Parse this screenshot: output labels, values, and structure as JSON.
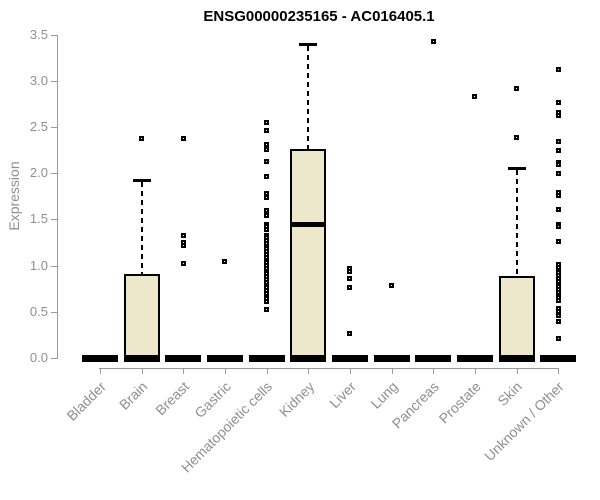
{
  "colors": {
    "box_fill": "#EDE7CB",
    "box_stroke": "#000000",
    "axis_text": "#8f8f8f",
    "axis_line": "#9a9a9a",
    "title_text": "#000000",
    "background": "#ffffff"
  },
  "chart_data": {
    "type": "boxplot",
    "title": "ENSG00000235165 - AC016405.1",
    "xlabel": "",
    "ylabel": "Expression",
    "ylim": [
      0,
      3.5
    ],
    "yticks": [
      "0.0",
      "0.5",
      "1.0",
      "1.5",
      "2.0",
      "2.5",
      "3.0",
      "3.5"
    ],
    "grid": false,
    "categories": [
      "Bladder",
      "Brain",
      "Breast",
      "Gastric",
      "Hematopoietic cells",
      "Kidney",
      "Liver",
      "Lung",
      "Pancreas",
      "Prostate",
      "Skin",
      "Unknown / Other"
    ],
    "series": [
      {
        "name": "Bladder",
        "whisker_low": 0,
        "q1": 0,
        "median": 0,
        "q3": 0,
        "whisker_high": 0,
        "outliers": []
      },
      {
        "name": "Brain",
        "whisker_low": 0,
        "q1": 0,
        "median": 0,
        "q3": 0.91,
        "whisker_high": 1.93,
        "outliers": [
          2.38
        ]
      },
      {
        "name": "Breast",
        "whisker_low": 0,
        "q1": 0,
        "median": 0,
        "q3": 0,
        "whisker_high": 0,
        "outliers": [
          2.38,
          1.33,
          1.25,
          1.22,
          1.02
        ]
      },
      {
        "name": "Gastric",
        "whisker_low": 0,
        "q1": 0,
        "median": 0,
        "q3": 0,
        "whisker_high": 0,
        "outliers": [
          1.04
        ]
      },
      {
        "name": "Hematopoietic cells",
        "whisker_low": 0,
        "q1": 0,
        "median": 0,
        "q3": 0,
        "whisker_high": 0,
        "outliers": [
          2.55,
          2.46,
          2.31,
          2.26,
          2.13,
          1.96,
          1.78,
          1.74,
          1.6,
          1.54,
          1.45,
          1.42,
          1.39,
          1.33,
          1.3,
          1.27,
          1.24,
          1.21,
          1.18,
          1.15,
          1.12,
          1.09,
          1.06,
          1.03,
          1.0,
          0.97,
          0.94,
          0.91,
          0.88,
          0.85,
          0.82,
          0.79,
          0.76,
          0.73,
          0.7,
          0.67,
          0.64,
          0.61,
          0.52
        ]
      },
      {
        "name": "Kidney",
        "whisker_low": 0,
        "q1": 0,
        "median": 1.44,
        "q3": 2.26,
        "whisker_high": 3.4,
        "outliers": []
      },
      {
        "name": "Liver",
        "whisker_low": 0,
        "q1": 0,
        "median": 0,
        "q3": 0,
        "whisker_high": 0,
        "outliers": [
          0.97,
          0.94,
          0.86,
          0.76,
          0.27
        ]
      },
      {
        "name": "Lung",
        "whisker_low": 0,
        "q1": 0,
        "median": 0,
        "q3": 0,
        "whisker_high": 0,
        "outliers": [
          0.79
        ]
      },
      {
        "name": "Pancreas",
        "whisker_low": 0,
        "q1": 0,
        "median": 0,
        "q3": 0,
        "whisker_high": 0,
        "outliers": [
          3.43
        ]
      },
      {
        "name": "Prostate",
        "whisker_low": 0,
        "q1": 0,
        "median": 0,
        "q3": 0,
        "whisker_high": 0,
        "outliers": [
          2.83
        ]
      },
      {
        "name": "Skin",
        "whisker_low": 0,
        "q1": 0,
        "median": 0,
        "q3": 0.89,
        "whisker_high": 2.06,
        "outliers": [
          2.92,
          2.39
        ]
      },
      {
        "name": "Unknown / Other",
        "whisker_low": 0,
        "q1": 0,
        "median": 0,
        "q3": 0,
        "whisker_high": 0,
        "outliers": [
          3.12,
          2.76,
          2.66,
          2.62,
          2.34,
          2.25,
          2.12,
          2.09,
          2.0,
          1.79,
          1.76,
          1.61,
          1.45,
          1.42,
          1.26,
          1.01,
          0.98,
          0.95,
          0.92,
          0.89,
          0.86,
          0.83,
          0.8,
          0.77,
          0.74,
          0.71,
          0.68,
          0.65,
          0.62,
          0.54,
          0.5,
          0.46,
          0.39,
          0.21
        ]
      }
    ]
  }
}
